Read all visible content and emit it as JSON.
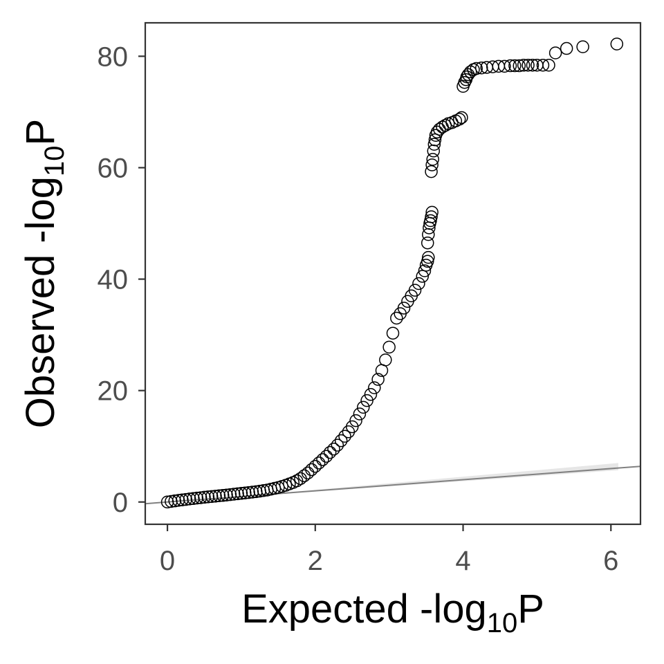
{
  "chart_data": {
    "type": "scatter",
    "title": "",
    "xlabel": {
      "prefix": "Expected -log",
      "subscript": "10",
      "suffix": "P"
    },
    "ylabel": {
      "prefix": "Observed -log",
      "subscript": "10",
      "suffix": "P"
    },
    "xlim": [
      -0.3,
      6.4
    ],
    "ylim": [
      -4,
      86
    ],
    "xticks": [
      0,
      2,
      4,
      6
    ],
    "yticks": [
      0,
      20,
      40,
      60,
      80
    ],
    "grid": false,
    "legend": "none",
    "marker": "open-circle",
    "colors": {
      "points": "#000000",
      "reference_line": "#808080",
      "confidence_band": "#e6e6e6",
      "panel_border": "#333333",
      "tick_label": "#4d4d4d"
    },
    "reference_line": {
      "from": [
        -0.3,
        -0.3
      ],
      "to": [
        6.4,
        6.4
      ]
    },
    "confidence_band": {
      "x": [
        1.5,
        6.1
      ],
      "lower": [
        1.4,
        5.7
      ],
      "upper": [
        1.6,
        7.0
      ]
    },
    "series": [
      {
        "points": [
          [
            0.0,
            0.0
          ],
          [
            0.05,
            0.1
          ],
          [
            0.1,
            0.2
          ],
          [
            0.15,
            0.3
          ],
          [
            0.2,
            0.38
          ],
          [
            0.25,
            0.46
          ],
          [
            0.3,
            0.55
          ],
          [
            0.35,
            0.62
          ],
          [
            0.4,
            0.7
          ],
          [
            0.45,
            0.77
          ],
          [
            0.5,
            0.85
          ],
          [
            0.55,
            0.92
          ],
          [
            0.6,
            0.98
          ],
          [
            0.65,
            1.05
          ],
          [
            0.7,
            1.12
          ],
          [
            0.75,
            1.18
          ],
          [
            0.8,
            1.25
          ],
          [
            0.85,
            1.32
          ],
          [
            0.9,
            1.4
          ],
          [
            0.95,
            1.47
          ],
          [
            1.0,
            1.55
          ],
          [
            1.05,
            1.62
          ],
          [
            1.1,
            1.7
          ],
          [
            1.15,
            1.78
          ],
          [
            1.2,
            1.85
          ],
          [
            1.25,
            1.95
          ],
          [
            1.3,
            2.05
          ],
          [
            1.35,
            2.15
          ],
          [
            1.4,
            2.3
          ],
          [
            1.45,
            2.45
          ],
          [
            1.5,
            2.6
          ],
          [
            1.55,
            2.8
          ],
          [
            1.6,
            3.0
          ],
          [
            1.65,
            3.25
          ],
          [
            1.7,
            3.5
          ],
          [
            1.75,
            3.8
          ],
          [
            1.8,
            4.2
          ],
          [
            1.85,
            4.7
          ],
          [
            1.9,
            5.2
          ],
          [
            1.95,
            5.8
          ],
          [
            2.0,
            6.4
          ],
          [
            2.05,
            7.0
          ],
          [
            2.1,
            7.6
          ],
          [
            2.15,
            8.2
          ],
          [
            2.2,
            8.9
          ],
          [
            2.25,
            9.5
          ],
          [
            2.3,
            10.2
          ],
          [
            2.35,
            11.0
          ],
          [
            2.4,
            11.8
          ],
          [
            2.45,
            12.6
          ],
          [
            2.5,
            13.5
          ],
          [
            2.55,
            14.6
          ],
          [
            2.6,
            15.8
          ],
          [
            2.65,
            17.0
          ],
          [
            2.7,
            18.2
          ],
          [
            2.75,
            19.3
          ],
          [
            2.8,
            20.5
          ],
          [
            2.85,
            22.0
          ],
          [
            2.9,
            23.6
          ],
          [
            2.95,
            25.5
          ],
          [
            3.0,
            27.8
          ],
          [
            3.05,
            30.3
          ],
          [
            3.1,
            33.0
          ],
          [
            3.15,
            33.8
          ],
          [
            3.2,
            34.8
          ],
          [
            3.25,
            36.0
          ],
          [
            3.3,
            37.0
          ],
          [
            3.35,
            38.0
          ],
          [
            3.4,
            39.2
          ],
          [
            3.45,
            40.5
          ],
          [
            3.48,
            41.5
          ],
          [
            3.5,
            42.5
          ],
          [
            3.52,
            43.2
          ],
          [
            3.53,
            43.9
          ],
          [
            3.52,
            46.5
          ],
          [
            3.53,
            48.0
          ],
          [
            3.54,
            49.2
          ],
          [
            3.55,
            50.0
          ],
          [
            3.56,
            50.5
          ],
          [
            3.57,
            51.2
          ],
          [
            3.58,
            52.0
          ],
          [
            3.57,
            59.3
          ],
          [
            3.58,
            60.5
          ],
          [
            3.59,
            61.5
          ],
          [
            3.6,
            63.0
          ],
          [
            3.61,
            64.2
          ],
          [
            3.62,
            65.0
          ],
          [
            3.63,
            65.8
          ],
          [
            3.65,
            66.4
          ],
          [
            3.68,
            66.9
          ],
          [
            3.72,
            67.3
          ],
          [
            3.76,
            67.6
          ],
          [
            3.8,
            67.9
          ],
          [
            3.85,
            68.1
          ],
          [
            3.9,
            68.4
          ],
          [
            3.95,
            68.7
          ],
          [
            3.98,
            69.0
          ],
          [
            4.0,
            74.6
          ],
          [
            4.02,
            75.3
          ],
          [
            4.04,
            75.8
          ],
          [
            4.05,
            76.3
          ],
          [
            4.07,
            76.7
          ],
          [
            4.1,
            77.2
          ],
          [
            4.14,
            77.6
          ],
          [
            4.18,
            77.8
          ],
          [
            4.25,
            77.9
          ],
          [
            4.32,
            78.0
          ],
          [
            4.4,
            78.1
          ],
          [
            4.48,
            78.2
          ],
          [
            4.56,
            78.2
          ],
          [
            4.64,
            78.3
          ],
          [
            4.7,
            78.3
          ],
          [
            4.76,
            78.3
          ],
          [
            4.82,
            78.4
          ],
          [
            4.88,
            78.4
          ],
          [
            4.94,
            78.4
          ],
          [
            5.0,
            78.4
          ],
          [
            5.08,
            78.4
          ],
          [
            5.16,
            78.4
          ],
          [
            5.25,
            80.6
          ],
          [
            5.4,
            81.4
          ],
          [
            5.62,
            81.7
          ],
          [
            6.08,
            82.2
          ]
        ]
      }
    ]
  }
}
